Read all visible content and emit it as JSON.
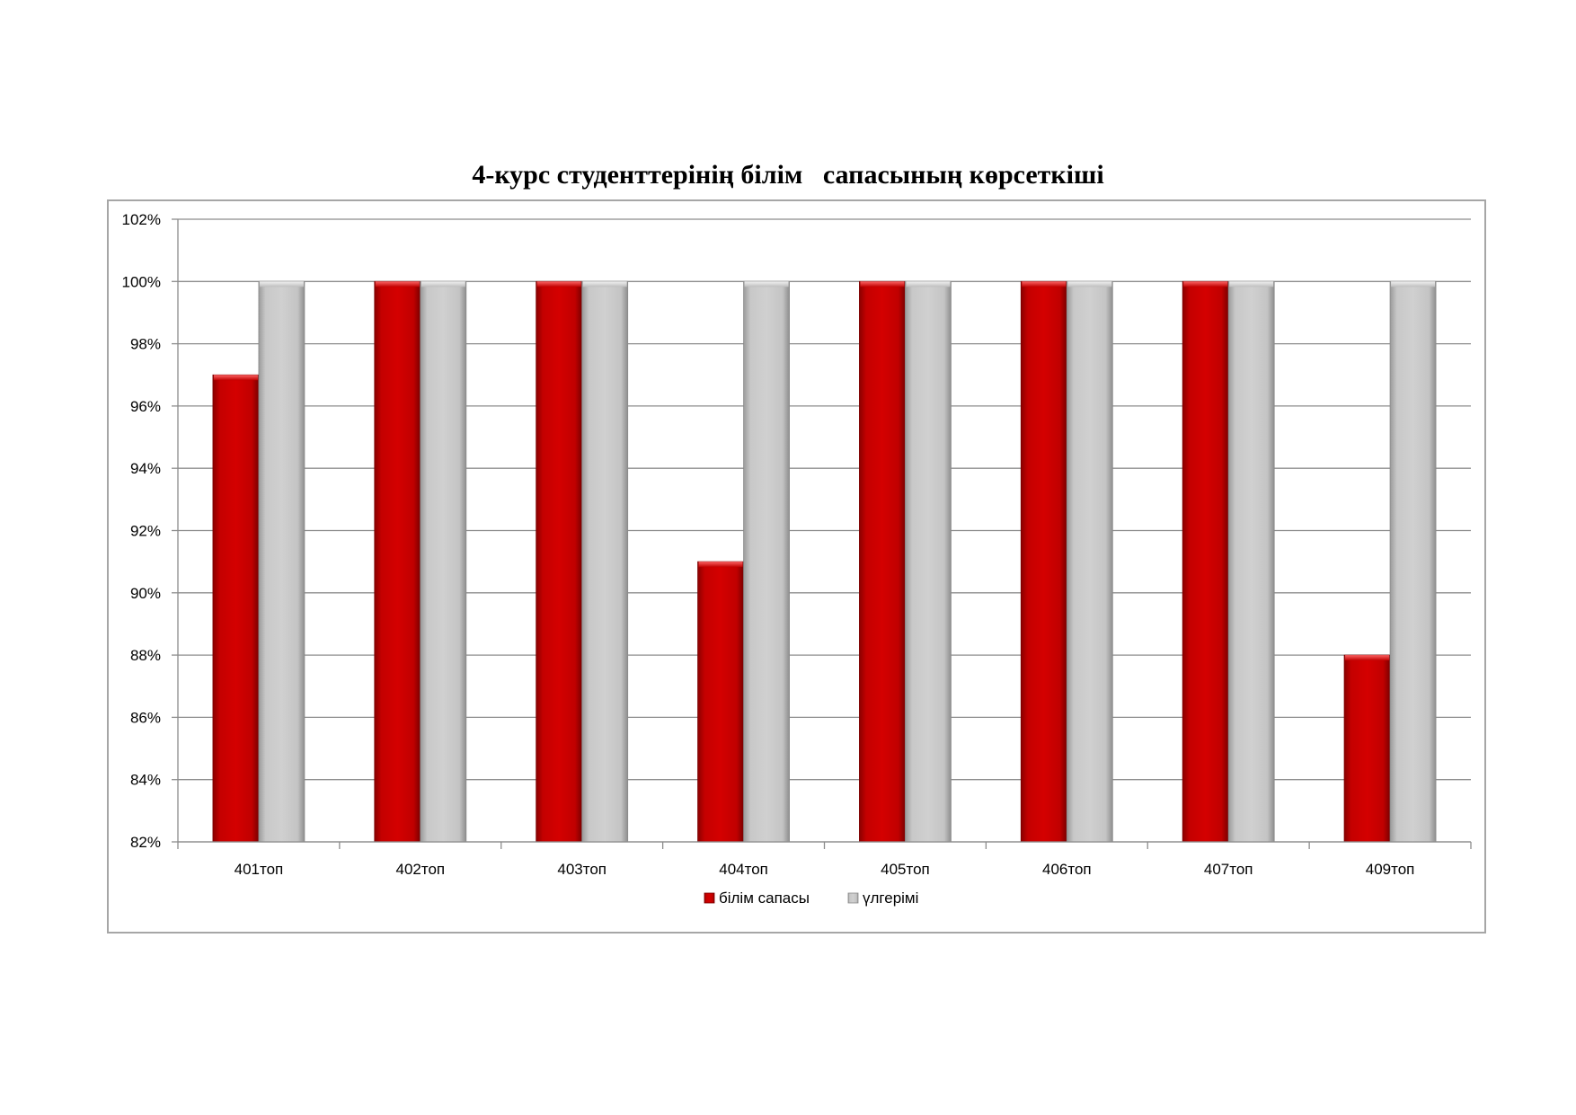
{
  "chart_data": {
    "type": "bar",
    "title": "4-курс студенттерінің білім   сапасының көрсеткіші",
    "categories": [
      "401топ",
      "402топ",
      "403топ",
      "404топ",
      "405топ",
      "406топ",
      "407топ",
      "409топ"
    ],
    "series": [
      {
        "name": "білім сапасы",
        "values": [
          97,
          100,
          100,
          91,
          100,
          100,
          100,
          88
        ],
        "color": "#cc0000"
      },
      {
        "name": "үлгерімі",
        "values": [
          100,
          100,
          100,
          100,
          100,
          100,
          100,
          100
        ],
        "color": "#c8c8c8"
      }
    ],
    "ylim": [
      82,
      102
    ],
    "yticks": [
      "82%",
      "84%",
      "86%",
      "88%",
      "90%",
      "92%",
      "94%",
      "96%",
      "98%",
      "100%",
      "102%"
    ],
    "ytick_values": [
      82,
      84,
      86,
      88,
      90,
      92,
      94,
      96,
      98,
      100,
      102
    ],
    "grid": true,
    "legend_position": "bottom"
  }
}
